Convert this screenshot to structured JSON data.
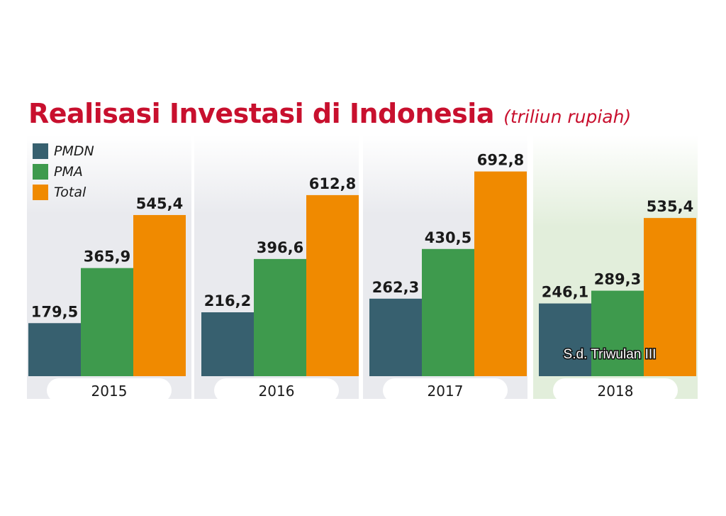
{
  "title": "Realisasi Investasi di Indonesia",
  "subtitle": "(triliun rupiah)",
  "colors": {
    "pmdn": "#37606f",
    "pma": "#3e9a4d",
    "total": "#f08a00",
    "title": "#c8102e",
    "panel": "#e9eaee",
    "panel_last": "#e2eedb"
  },
  "legend": [
    {
      "label": "PMDN",
      "color": "#37606f"
    },
    {
      "label": "PMA",
      "color": "#3e9a4d"
    },
    {
      "label": "Total",
      "color": "#f08a00"
    }
  ],
  "chart_data": {
    "type": "bar",
    "categories": [
      "2015",
      "2016",
      "2017",
      "2018"
    ],
    "series": [
      {
        "name": "PMDN",
        "values": [
          179.5,
          216.2,
          262.3,
          246.1
        ],
        "labels": [
          "179,5",
          "216,2",
          "262,3",
          "246,1"
        ]
      },
      {
        "name": "PMA",
        "values": [
          365.9,
          396.6,
          430.5,
          289.3
        ],
        "labels": [
          "365,9",
          "396,6",
          "430,5",
          "289,3"
        ]
      },
      {
        "name": "Total",
        "values": [
          545.4,
          612.8,
          692.8,
          535.4
        ],
        "labels": [
          "545,4",
          "612,8",
          "692,8",
          "535,4"
        ]
      }
    ],
    "annotations": [
      {
        "category": "2018",
        "text": "S.d. Triwulan III"
      }
    ],
    "ylim": [
      0,
      700
    ],
    "grid": false,
    "legend_position": "top-left"
  }
}
